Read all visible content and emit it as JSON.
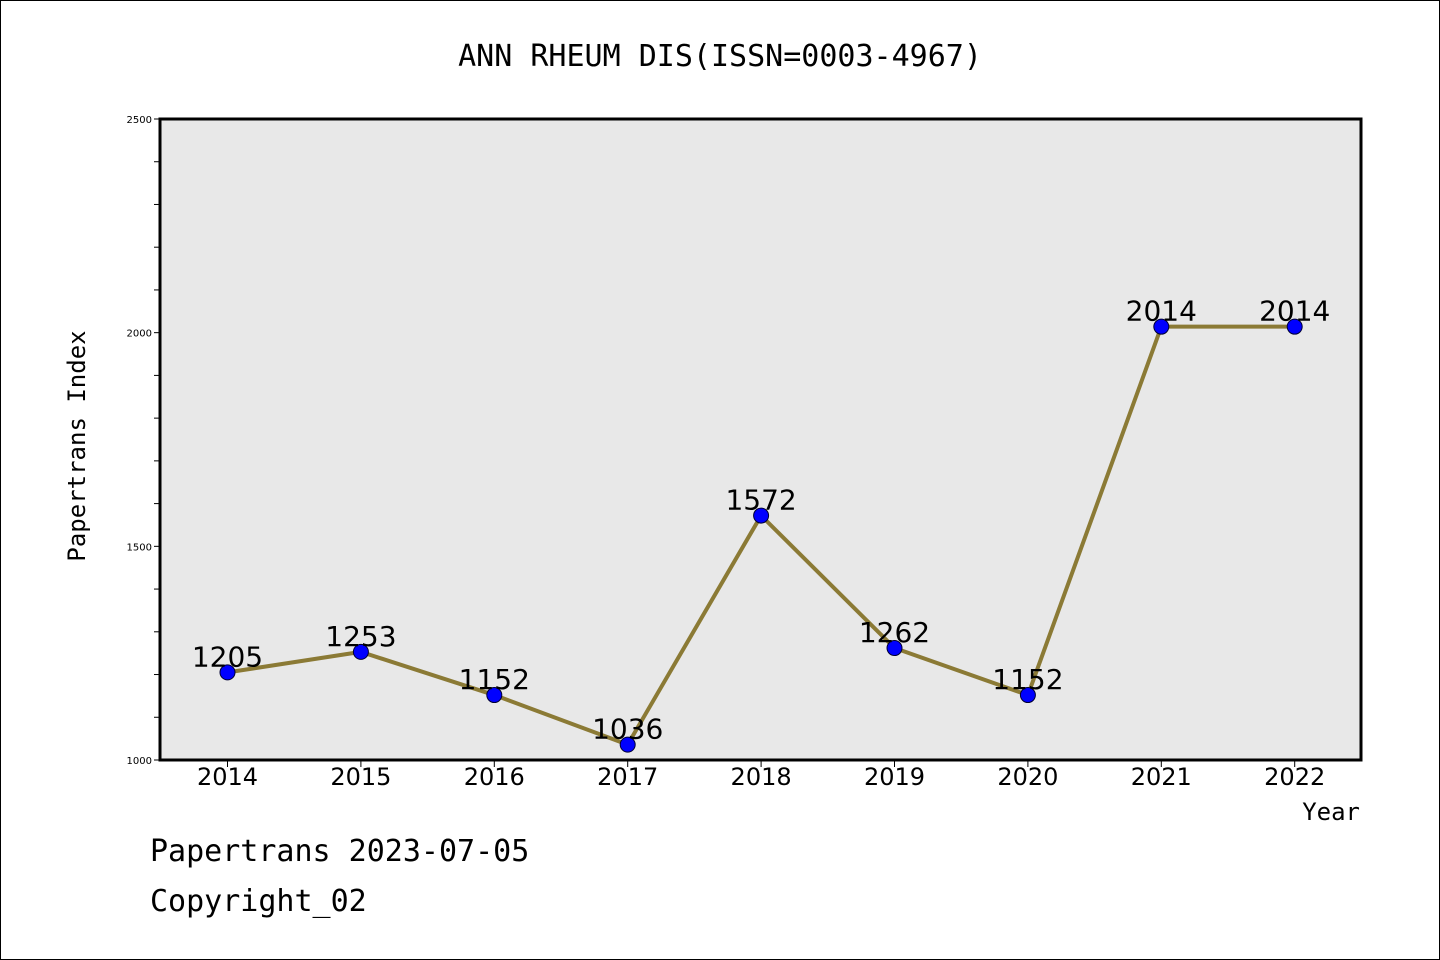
{
  "chart_data": {
    "type": "line",
    "title": "ANN RHEUM DIS(ISSN=0003-4967)",
    "xlabel": "Year",
    "ylabel": "Papertrans Index",
    "x": [
      "2014",
      "2015",
      "2016",
      "2017",
      "2018",
      "2019",
      "2020",
      "2021",
      "2022"
    ],
    "series": [
      {
        "values": [
          1205,
          1253,
          1152,
          1036,
          1572,
          1262,
          1152,
          2014,
          2014
        ]
      }
    ],
    "data_labels": [
      "1205",
      "1253",
      "1152",
      "1036",
      "1572",
      "1262",
      "1152",
      "2014",
      "2014"
    ],
    "ylim": [
      1000,
      2500
    ],
    "y_ticks": [
      "1000",
      "1500",
      "2000",
      "2500"
    ],
    "y_minor_step": 100,
    "grid": false,
    "colors": {
      "line": "#8b7a35",
      "marker": "#0000ff",
      "plot_background": "#e8e8e8"
    }
  },
  "footer": {
    "date_line": "Papertrans 2023-07-05",
    "copyright": "Copyright_02"
  }
}
